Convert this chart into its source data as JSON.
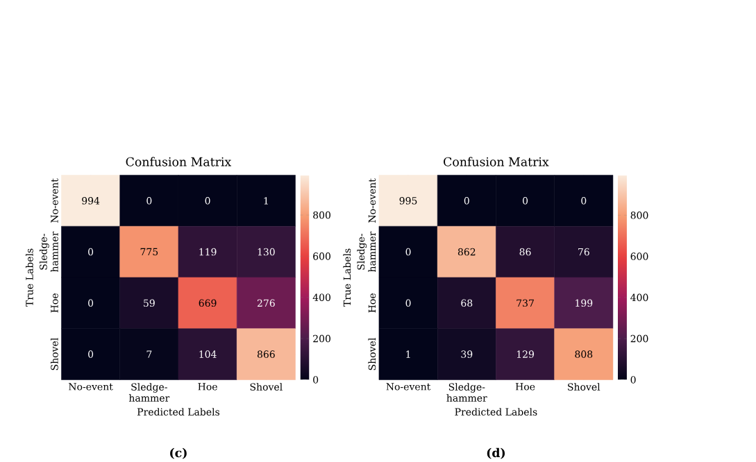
{
  "chart_data": [
    {
      "type": "heatmap",
      "title": "Confusion Matrix",
      "xlabel": "Predicted Labels",
      "ylabel": "True Labels",
      "categories": [
        "No-event",
        "Sledge-hammer",
        "Hoe",
        "Shovel"
      ],
      "y_categories": [
        "No-event",
        "Sledge-hammer",
        "Hoe",
        "Shovel"
      ],
      "cells": [
        [
          994,
          0,
          0,
          1
        ],
        [
          0,
          775,
          119,
          130
        ],
        [
          0,
          59,
          669,
          276
        ],
        [
          0,
          7,
          104,
          866
        ]
      ],
      "data_labels": true,
      "clim": [
        0,
        994
      ],
      "cticks": [
        0,
        200,
        400,
        600,
        800
      ],
      "annotations": [
        "(c)"
      ]
    },
    {
      "type": "heatmap",
      "title": "Confusion Matrix",
      "xlabel": "Predicted Labels",
      "ylabel": "True Labels",
      "categories": [
        "No-event",
        "Sledge-hammer",
        "Hoe",
        "Shovel"
      ],
      "y_categories": [
        "No-event",
        "Sledge-hammer",
        "Hoe",
        "Shovel"
      ],
      "cells": [
        [
          995,
          0,
          0,
          0
        ],
        [
          0,
          862,
          86,
          76
        ],
        [
          0,
          68,
          737,
          199
        ],
        [
          1,
          39,
          129,
          808
        ]
      ],
      "data_labels": true,
      "clim": [
        0,
        995
      ],
      "cticks": [
        0,
        200,
        400,
        600,
        800
      ],
      "annotations": [
        "(d)"
      ]
    }
  ]
}
